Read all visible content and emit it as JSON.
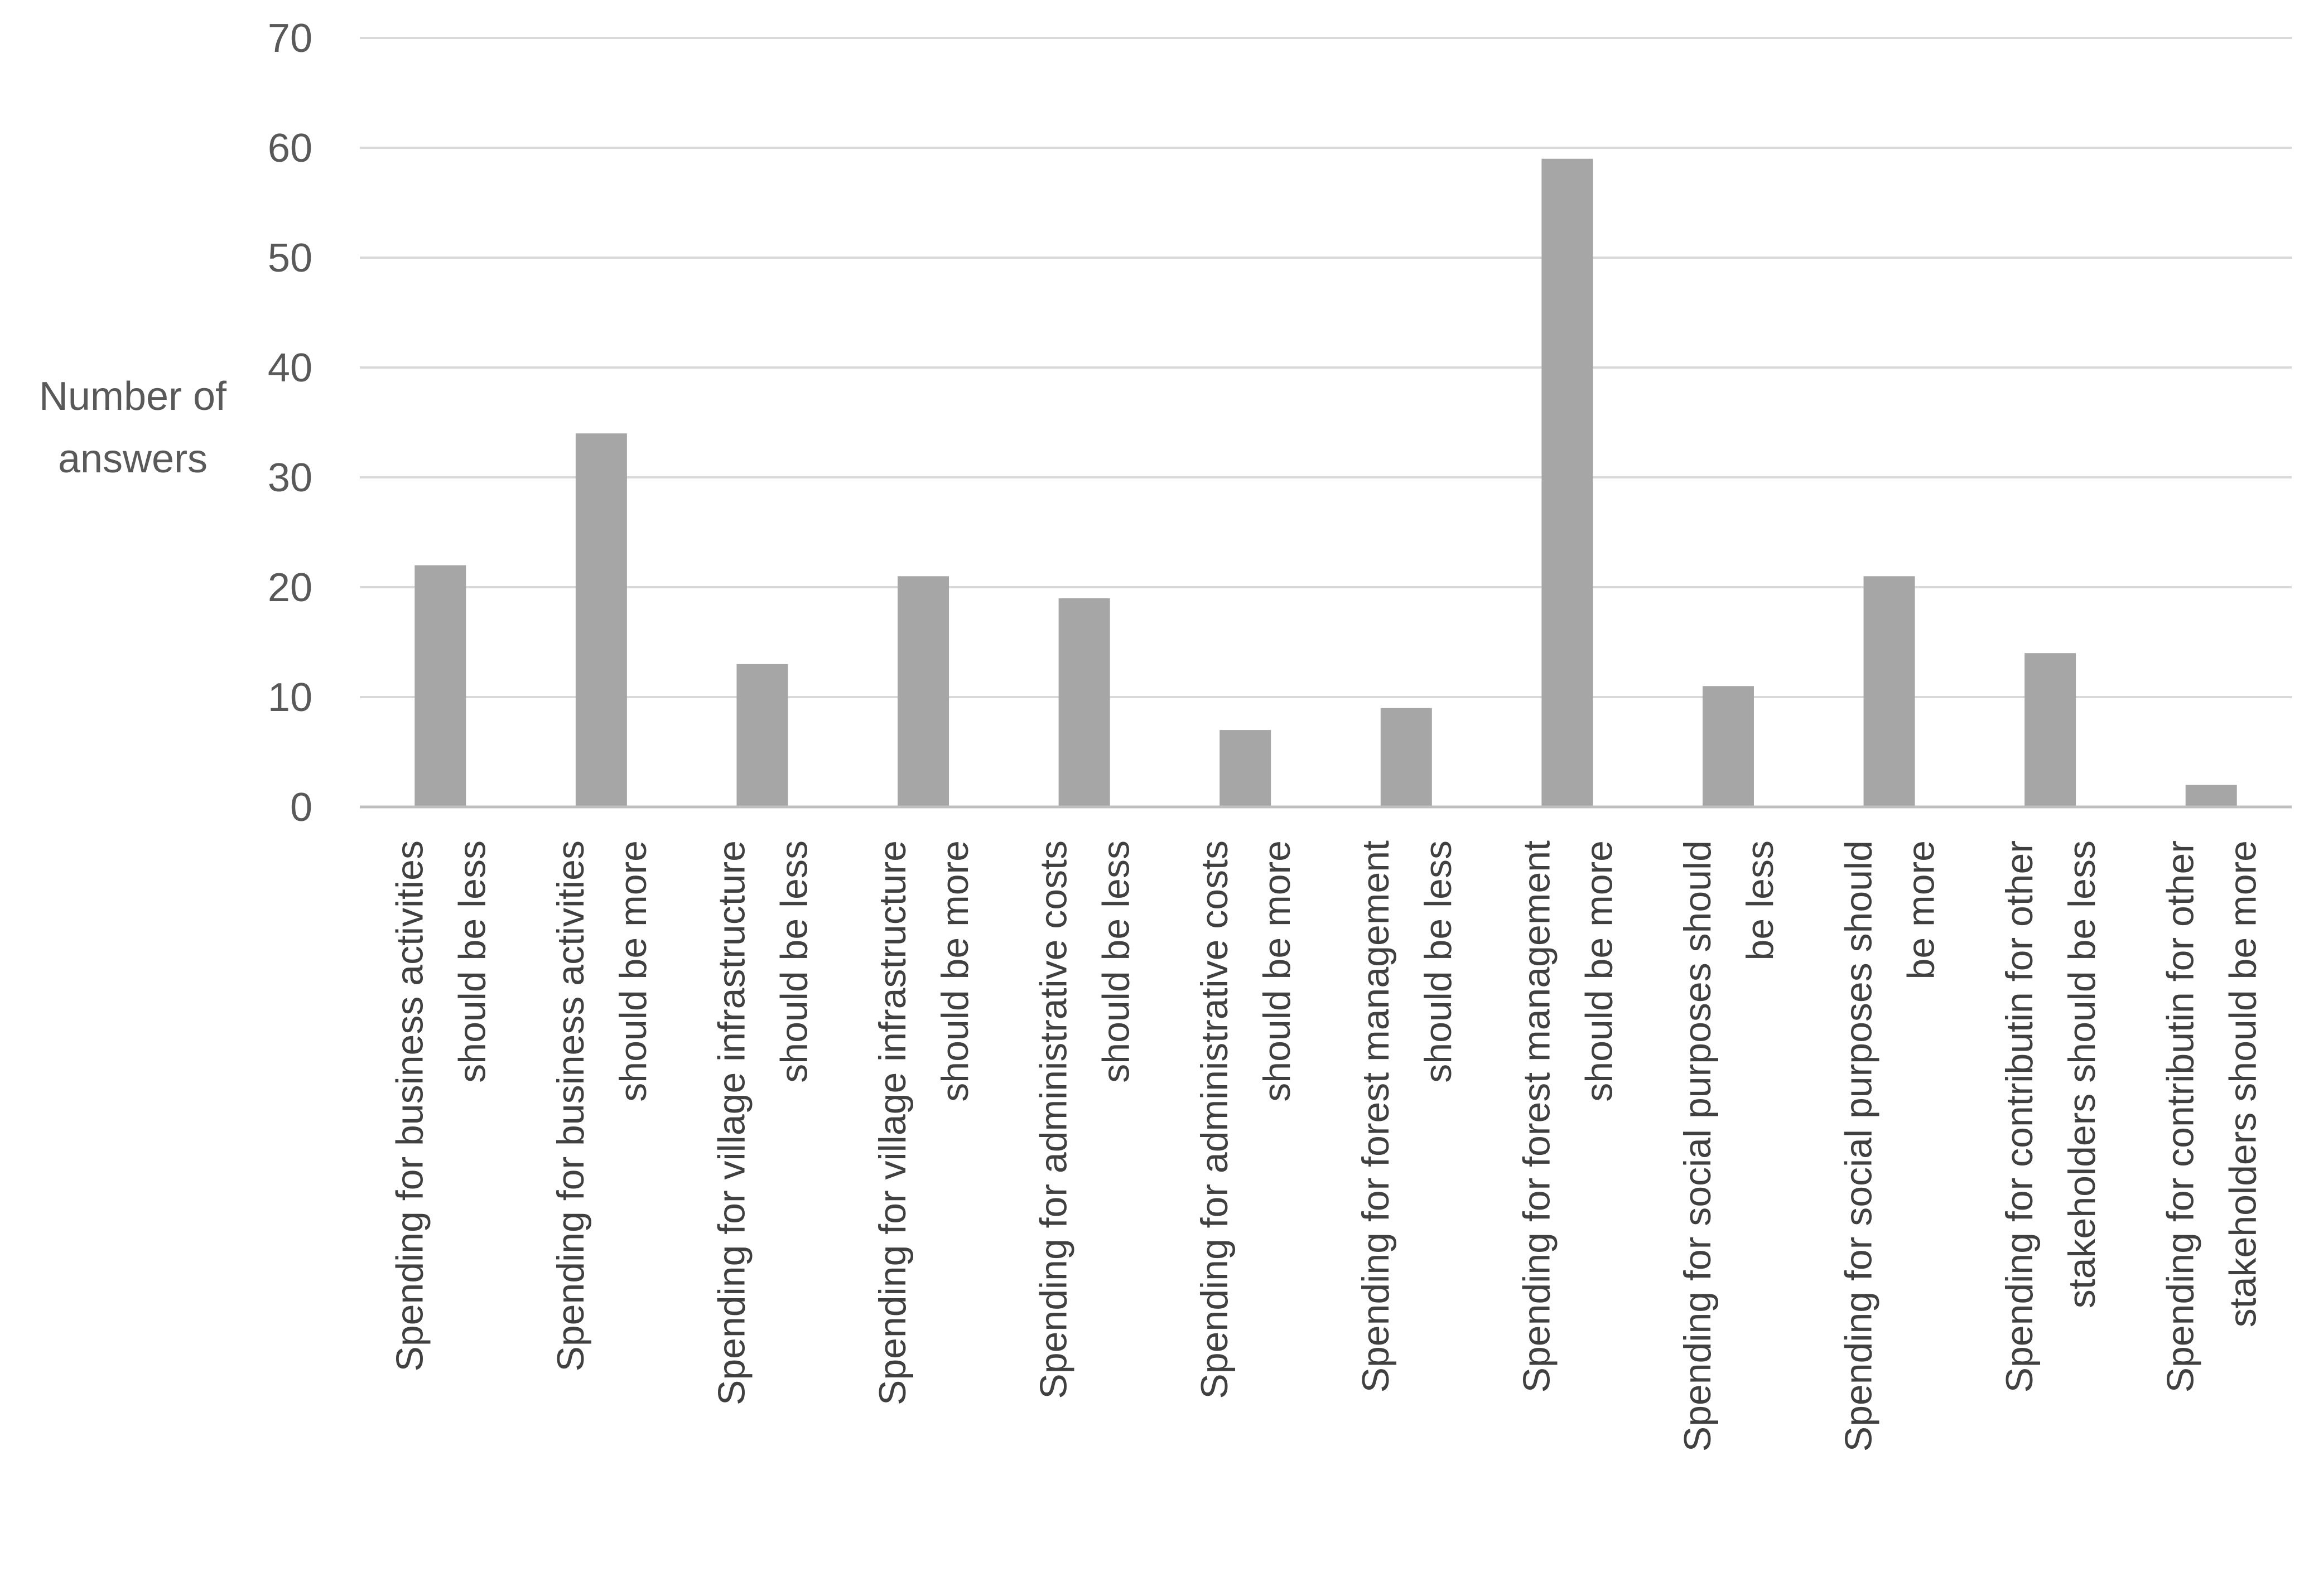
{
  "chart_data": {
    "type": "bar",
    "title": "",
    "xlabel": "",
    "ylabel": [
      "Number of",
      "answers"
    ],
    "ylim": [
      0,
      70
    ],
    "yticks": [
      0,
      10,
      20,
      30,
      40,
      50,
      60,
      70
    ],
    "grid": true,
    "legend": "none",
    "bar_color": "#a6a6a6",
    "categories": [
      [
        "Spending for business activities",
        "should be less"
      ],
      [
        "Spending for business activities",
        "should be more"
      ],
      [
        "Spending for village infrastructure",
        "should be less"
      ],
      [
        "Spending for village infrastructure",
        "should be more"
      ],
      [
        "Spending for administrative costs",
        "should be less"
      ],
      [
        "Spending for administrative costs",
        "should be more"
      ],
      [
        "Spending for forest management",
        "should be less"
      ],
      [
        "Spending for forest management",
        "should be more"
      ],
      [
        "Spending for social purposes should",
        "be less"
      ],
      [
        "Spending for social purposes should",
        "be more"
      ],
      [
        "Spending for contributin for other",
        "stakeholders should be less"
      ],
      [
        "Spending for contributin for other",
        "stakeholders should be more"
      ]
    ],
    "values": [
      22,
      34,
      13,
      21,
      19,
      7,
      9,
      59,
      11,
      21,
      14,
      2
    ]
  }
}
